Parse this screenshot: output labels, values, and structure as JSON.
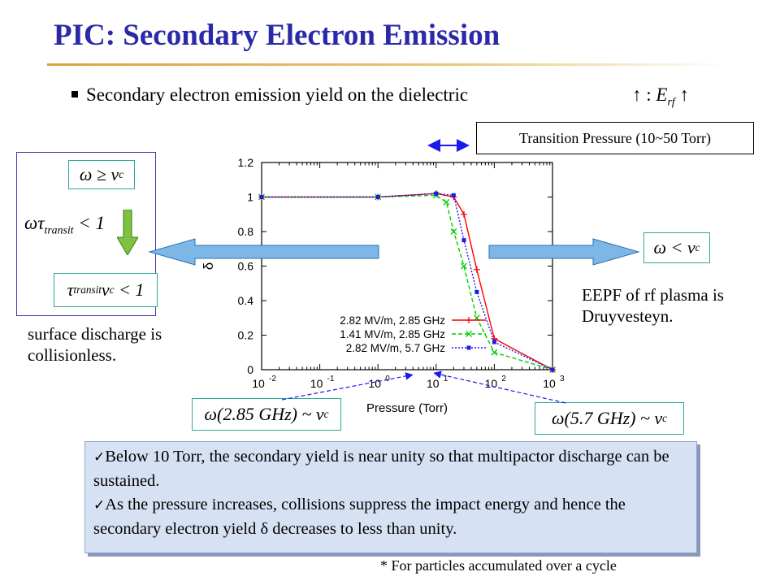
{
  "slide": {
    "title": "PIC: Secondary Electron Emission",
    "bullet": "Secondary electron emission yield on the dielectric",
    "arrows_note": "↑ :",
    "arrows_note_var": "E",
    "arrows_note_sub": "rf",
    "arrows_note_tail": "↑",
    "transition_label": "Transition Pressure (10~50 Torr)",
    "left_eq_1_lhs": "ω",
    "left_eq_1_rhs": "≥ ν",
    "left_eq_1_sub": "c",
    "left_eq_2_lhs": "ωτ",
    "left_eq_2_sub": "transit",
    "left_eq_2_rhs": "< 1",
    "left_eq_3_lhs": "τ",
    "left_eq_3_sub": "transit",
    "left_eq_3_mid": "ν",
    "left_eq_3_sub2": "c",
    "left_eq_3_rhs": "< 1",
    "left_caption": "surface discharge is collisionless.",
    "right_eq_lhs": "ω < ν",
    "right_eq_sub": "c",
    "right_caption": "EEPF of rf plasma is Druyvesteyn.",
    "bottom_eq_1_lhs": "ω(2.85 GHz) ~ ν",
    "bottom_eq_1_sub": "c",
    "bottom_eq_2_lhs": "ω(5.7 GHz) ~ ν",
    "bottom_eq_2_sub": "c",
    "note_line_1": "Below 10 Torr, the secondary yield is near unity so that multipactor discharge can be sustained.",
    "note_line_2_a": "As the pressure increases, collisions suppress the impact energy and hence the secondary electron yield ",
    "note_line_2_delta": "δ",
    "note_line_2_b": " decreases to less than unity.",
    "footnote": "* For particles accumulated over a cycle"
  },
  "colors": {
    "title": "#2a2aa8",
    "series_red": "#ff0000",
    "series_green": "#00cc00",
    "series_blue": "#1a1aee",
    "arrow": "#7db7e8",
    "down_arrow": "#7fc241"
  },
  "chart_data": {
    "type": "line",
    "xlabel": "Pressure (Torr)",
    "ylabel": "δ",
    "xscale": "log",
    "xlim": [
      0.01,
      1000
    ],
    "ylim": [
      0,
      1.2
    ],
    "yticks": [
      "0",
      "0.2",
      "0.4",
      "0.6",
      "0.8",
      "1",
      "1.2"
    ],
    "xticks": [
      {
        "base": "10",
        "exp": "-2"
      },
      {
        "base": "10",
        "exp": "-1"
      },
      {
        "base": "10",
        "exp": "0"
      },
      {
        "base": "10",
        "exp": "1"
      },
      {
        "base": "10",
        "exp": "2"
      },
      {
        "base": "10",
        "exp": "3"
      }
    ],
    "legend_position": "bottom-left",
    "series": [
      {
        "name": "2.82 MV/m, 2.85 GHz",
        "marker": "+",
        "dash": "solid",
        "x": [
          0.01,
          1,
          10,
          20,
          30,
          50,
          100,
          1000
        ],
        "y": [
          1.0,
          1.0,
          1.02,
          1.0,
          0.9,
          0.58,
          0.18,
          0.0
        ]
      },
      {
        "name": "1.41 MV/m, 2.85 GHz",
        "marker": "x",
        "dash": "dashed",
        "x": [
          0.01,
          1,
          10,
          15,
          20,
          30,
          50,
          100,
          1000
        ],
        "y": [
          1.0,
          1.0,
          1.01,
          0.97,
          0.8,
          0.6,
          0.3,
          0.1,
          0.0
        ]
      },
      {
        "name": "2.82 MV/m, 5.7 GHz",
        "marker": "s",
        "dash": "dotted",
        "x": [
          0.01,
          1,
          10,
          20,
          30,
          50,
          100,
          1000
        ],
        "y": [
          1.0,
          1.0,
          1.02,
          1.01,
          0.75,
          0.45,
          0.16,
          0.0
        ]
      }
    ]
  }
}
